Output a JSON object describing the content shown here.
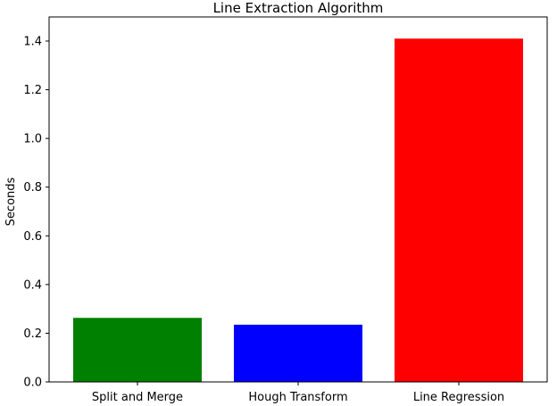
{
  "chart_data": {
    "type": "bar",
    "title": "Line Extraction Algorithm",
    "xlabel": "",
    "ylabel": "Seconds",
    "categories": [
      "Split and Merge",
      "Hough Transform",
      "Line Regression"
    ],
    "values": [
      0.263,
      0.235,
      1.41
    ],
    "colors": [
      "#008000",
      "#0000ff",
      "#ff0000"
    ],
    "ylim": [
      0,
      1.4
    ],
    "yticks": [
      0.0,
      0.2,
      0.4,
      0.6,
      0.8,
      1.0,
      1.2,
      1.4
    ],
    "ytick_labels": [
      "0.0",
      "0.2",
      "0.4",
      "0.6",
      "0.8",
      "1.0",
      "1.2",
      "1.4"
    ],
    "grid": false,
    "legend": "none"
  }
}
